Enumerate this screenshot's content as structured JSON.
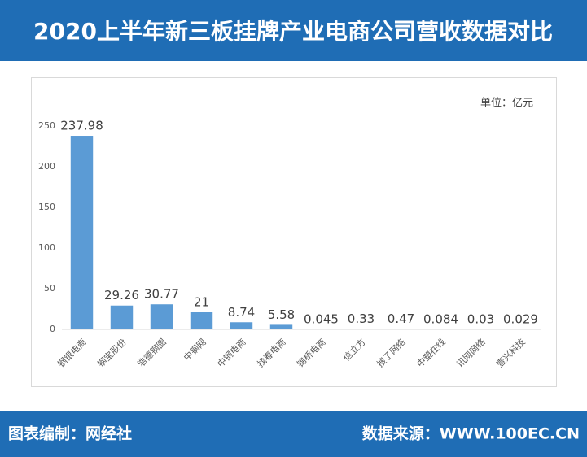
{
  "chart_data": {
    "type": "bar",
    "title": "2020上半年新三板挂牌产业电商公司营收数据对比",
    "unit_label": "单位：亿元",
    "categories": [
      "钢银电商",
      "钢宝股份",
      "浩德钢圈",
      "中钢网",
      "中钢电商",
      "找春电商",
      "锦桥电商",
      "信立方",
      "搜了网络",
      "中塑在线",
      "讯网网络",
      "壹兴科技"
    ],
    "values": [
      237.98,
      29.26,
      30.77,
      21,
      8.74,
      5.58,
      0.045,
      0.33,
      0.47,
      0.084,
      0.03,
      0.029
    ],
    "color": "#5b9bd5",
    "ylim": [
      0,
      250
    ],
    "yticks": [
      0,
      50,
      100,
      150,
      200,
      250
    ],
    "grid": false
  },
  "footer": {
    "left": "图表编制：网经社",
    "right": "数据来源：WWW.100EC.CN"
  }
}
